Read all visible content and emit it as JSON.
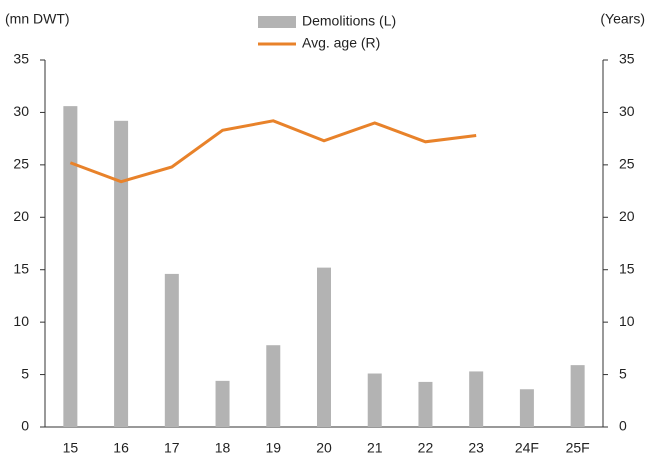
{
  "chart_data": {
    "type": "bar_line",
    "y_label": "(mn DWT)",
    "y2_label": "(Years)",
    "categories": [
      "15",
      "16",
      "17",
      "18",
      "19",
      "20",
      "21",
      "22",
      "23",
      "24F",
      "25F"
    ],
    "series": [
      {
        "name": "Demolitions (L)",
        "type": "bar",
        "color": "#b3b3b3",
        "axis": "y",
        "values": [
          30.6,
          29.2,
          14.6,
          4.4,
          7.8,
          15.2,
          5.1,
          4.3,
          5.3,
          3.6,
          5.9
        ]
      },
      {
        "name": "Avg. age (R)",
        "type": "line",
        "color": "#e8822a",
        "axis": "y2",
        "values": [
          25.2,
          23.4,
          24.8,
          28.3,
          29.2,
          27.3,
          29.0,
          27.2,
          27.8,
          null,
          null
        ]
      }
    ],
    "ylim": [
      0,
      35
    ],
    "yticks": [
      0,
      5,
      10,
      15,
      20,
      25,
      30,
      35
    ],
    "y2lim": [
      0,
      35
    ],
    "y2ticks": [
      0,
      5,
      10,
      15,
      20,
      25,
      30,
      35
    ],
    "grid": false
  }
}
